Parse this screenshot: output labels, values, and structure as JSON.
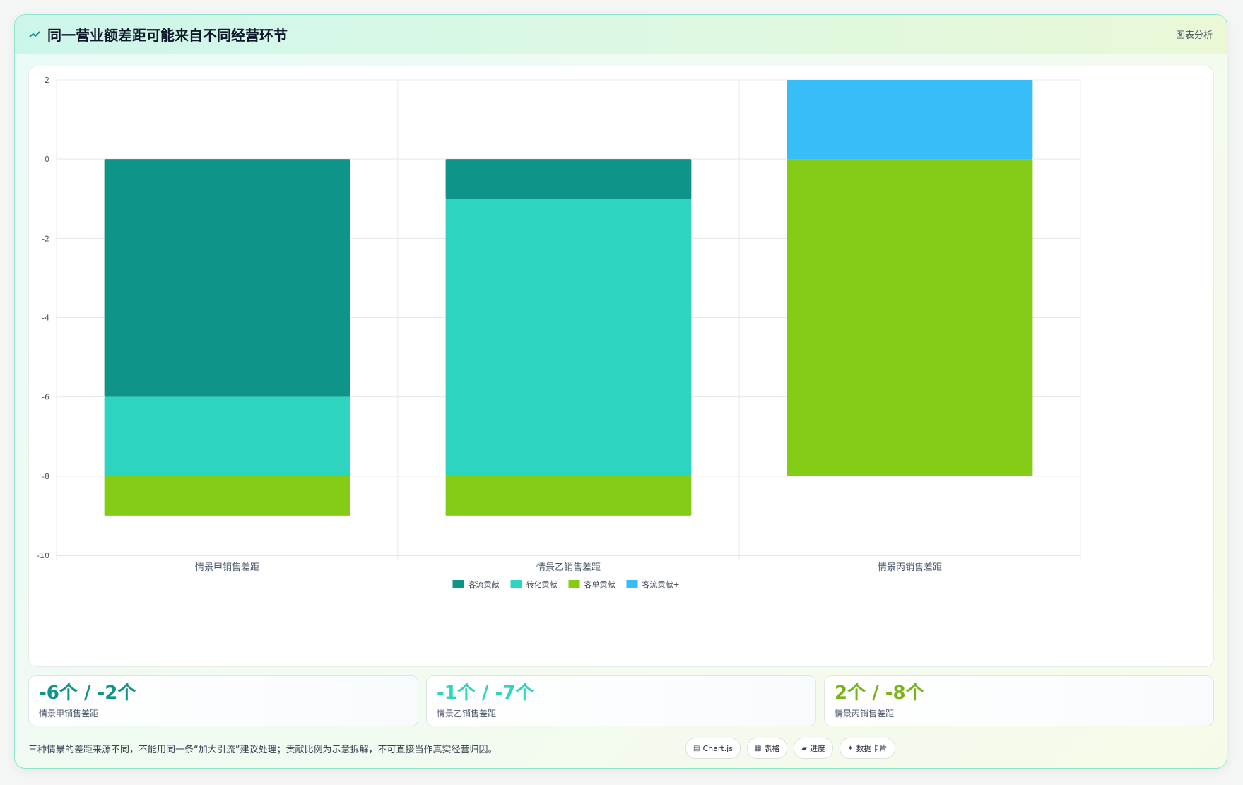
{
  "header": {
    "icon": "trend-icon",
    "title": "同一营业额差距可能来自不同经营环节",
    "tag": "图表分析"
  },
  "chart_data": {
    "type": "bar",
    "stacked": true,
    "categories": [
      "情景甲销售差距",
      "情景乙销售差距",
      "情景丙销售差距"
    ],
    "series": [
      {
        "name": "客流贡献",
        "color": "#0e9488",
        "values": [
          -6,
          -1,
          0
        ]
      },
      {
        "name": "转化贡献",
        "color": "#2dd4bf",
        "values": [
          -2,
          -7,
          0
        ]
      },
      {
        "name": "客单贡献",
        "color": "#84cc16",
        "values": [
          -1,
          -1,
          -8
        ]
      },
      {
        "name": "客流贡献+",
        "color": "#38bdf8",
        "values": [
          0,
          0,
          2
        ]
      }
    ],
    "ylim": [
      -10,
      2
    ],
    "yticks": [
      "2",
      "0",
      "-2",
      "-4",
      "-6",
      "-8",
      "-10"
    ],
    "xlabel": "",
    "ylabel": "",
    "grid": true,
    "legend_position": "bottom"
  },
  "stats": [
    {
      "value": "-6个 / -2个",
      "label": "情景甲销售差距",
      "color": "#0f9488"
    },
    {
      "value": "-1个 / -7个",
      "label": "情景乙销售差距",
      "color": "#2dd4bf"
    },
    {
      "value": "2个 / -8个",
      "label": "情景丙销售差距",
      "color": "#7ab317"
    }
  ],
  "footer": {
    "note": "三种情景的差距来源不同，不能用同一条“加大引流”建议处理；贡献比例为示意拆解，不可直接当作真实经营归因。",
    "chips": [
      {
        "icon": "chart-icon",
        "glyph": "▤",
        "label": "Chart.js"
      },
      {
        "icon": "table-icon",
        "glyph": "▦",
        "label": "表格"
      },
      {
        "icon": "progress-icon",
        "glyph": "▰",
        "label": "进度"
      },
      {
        "icon": "sparkle-icon",
        "glyph": "✦",
        "label": "数据卡片"
      }
    ]
  }
}
